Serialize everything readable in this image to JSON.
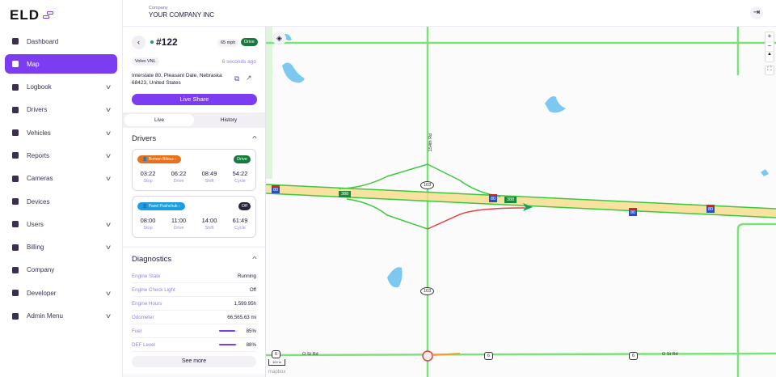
{
  "brand": {
    "logo": "ELD",
    "accent": "#7b3cf2"
  },
  "sidebar": {
    "items": [
      {
        "label": "Dashboard",
        "icon": "dashboard-icon",
        "expandable": false
      },
      {
        "label": "Map",
        "icon": "map-icon",
        "expandable": false,
        "active": true
      },
      {
        "label": "Logbook",
        "icon": "logbook-icon",
        "expandable": true
      },
      {
        "label": "Drivers",
        "icon": "driver-icon",
        "expandable": true
      },
      {
        "label": "Vehicles",
        "icon": "truck-icon",
        "expandable": true
      },
      {
        "label": "Reports",
        "icon": "report-icon",
        "expandable": true
      },
      {
        "label": "Cameras",
        "icon": "camera-icon",
        "expandable": true
      },
      {
        "label": "Devices",
        "icon": "device-icon",
        "expandable": false
      },
      {
        "label": "Users",
        "icon": "users-icon",
        "expandable": true
      },
      {
        "label": "Billing",
        "icon": "billing-icon",
        "expandable": true
      },
      {
        "label": "Company",
        "icon": "store-icon",
        "expandable": false
      },
      {
        "label": "Developer",
        "icon": "layers-icon",
        "expandable": true
      },
      {
        "label": "Admin Menu",
        "icon": "pie-chart-icon",
        "expandable": true
      }
    ]
  },
  "header": {
    "company_label": "Company",
    "company_name": "YOUR COMPANY INC"
  },
  "vehicle": {
    "unit": "#122",
    "speed": "65 mph",
    "status": "Drive",
    "model": "Volvo VNL",
    "updated": "6 seconds ago",
    "address": "Interstate 80, Pleasant Dale, Nebraska 68423, United States",
    "live_share": "Live Share"
  },
  "tabs": [
    {
      "label": "Live",
      "active": true
    },
    {
      "label": "History",
      "active": false
    }
  ],
  "drivers": {
    "title": "Drivers",
    "items": [
      {
        "name": "Roman Bilous",
        "status": "Drive",
        "pill_color": "#e8711c",
        "status_color": "#177a3c",
        "timers": [
          {
            "v": "03:22",
            "l": "Stop"
          },
          {
            "v": "06:22",
            "l": "Drive"
          },
          {
            "v": "08:49",
            "l": "Shift"
          },
          {
            "v": "54:22",
            "l": "Cycle"
          }
        ]
      },
      {
        "name": "Pavel Pushchuk",
        "status": "Off",
        "pill_color": "#1a9ee0",
        "status_color": "#2b2438",
        "timers": [
          {
            "v": "08:00",
            "l": "Stop"
          },
          {
            "v": "11:00",
            "l": "Drive"
          },
          {
            "v": "14:00",
            "l": "Shift"
          },
          {
            "v": "61:49",
            "l": "Cycle"
          }
        ]
      }
    ]
  },
  "diagnostics": {
    "title": "Diagnostics",
    "rows": [
      {
        "k": "Engine State",
        "v": "Running"
      },
      {
        "k": "Engine Check Light",
        "v": "Off"
      },
      {
        "k": "Engine Hours",
        "v": "1,599.95h"
      },
      {
        "k": "Odometer",
        "v": "66,565.63 mi"
      },
      {
        "k": "Fuel",
        "v": "85%",
        "level": 85
      },
      {
        "k": "DEF Level",
        "v": "88%",
        "level": 88
      }
    ],
    "see_more": "See more"
  },
  "map": {
    "road_154": "154th Rd",
    "route_103": "103",
    "route_388": "388",
    "interstate": "80",
    "us6": "6",
    "ost": "O St Rd",
    "scale": "100 m",
    "attribution": "mapbox",
    "zoom_in": "+",
    "zoom_out": "−"
  }
}
